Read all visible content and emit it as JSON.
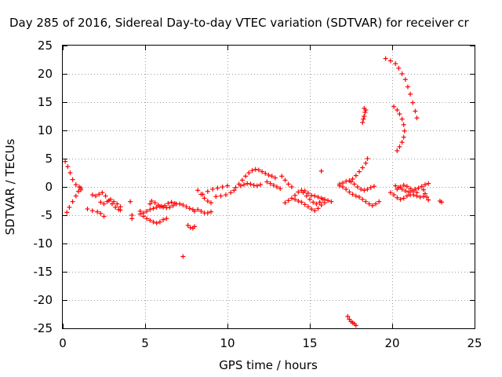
{
  "chart_data": {
    "type": "scatter",
    "title": "Day 285 of 2016, Sidereal Day-to-day VTEC variation (SDTVAR) for receiver cr",
    "xlabel": "GPS time / hours",
    "ylabel": "SDTVAR / TECUs",
    "xlim": [
      0,
      25
    ],
    "ylim": [
      -25,
      25
    ],
    "xticks": [
      0,
      5,
      10,
      15,
      20,
      25
    ],
    "yticks": [
      -25,
      -20,
      -15,
      -10,
      -5,
      0,
      5,
      10,
      15,
      20,
      25
    ],
    "grid": true,
    "marker": "plus",
    "color": "#ff0000",
    "tracks": [
      [
        [
          0.15,
          4.5
        ],
        [
          0.3,
          3.6
        ],
        [
          0.45,
          2.5
        ],
        [
          0.6,
          1.3
        ],
        [
          0.8,
          0.4
        ],
        [
          1.0,
          0.0
        ],
        [
          1.1,
          -0.5
        ]
      ],
      [
        [
          0.25,
          -4.5
        ],
        [
          0.4,
          -3.6
        ],
        [
          0.6,
          -2.6
        ],
        [
          0.8,
          -1.6
        ],
        [
          0.95,
          -0.8
        ],
        [
          1.1,
          -0.2
        ]
      ],
      [
        [
          1.5,
          -3.9
        ],
        [
          1.8,
          -4.2
        ],
        [
          2.1,
          -4.4
        ],
        [
          2.3,
          -4.7
        ],
        [
          2.5,
          -5.2
        ]
      ],
      [
        [
          1.8,
          -1.4
        ],
        [
          2.0,
          -1.6
        ],
        [
          2.2,
          -1.3
        ],
        [
          2.4,
          -1.0
        ],
        [
          2.6,
          -1.6
        ],
        [
          2.8,
          -2.4
        ],
        [
          3.0,
          -3.0
        ],
        [
          3.2,
          -3.6
        ],
        [
          3.4,
          -4.0
        ],
        [
          3.5,
          -4.1
        ]
      ],
      [
        [
          2.3,
          -2.7
        ],
        [
          2.5,
          -3.0
        ],
        [
          2.7,
          -2.6
        ],
        [
          2.9,
          -2.2
        ],
        [
          3.1,
          -2.6
        ],
        [
          3.3,
          -3.0
        ],
        [
          3.5,
          -3.5
        ]
      ],
      [
        [
          4.1,
          -2.6
        ]
      ],
      [
        [
          4.2,
          -5.0
        ],
        [
          4.2,
          -5.6
        ]
      ],
      [
        [
          4.7,
          -4.3
        ],
        [
          4.9,
          -5.2
        ],
        [
          5.1,
          -5.6
        ],
        [
          5.3,
          -5.9
        ],
        [
          5.5,
          -6.2
        ],
        [
          5.7,
          -6.4
        ],
        [
          5.9,
          -6.2
        ],
        [
          6.1,
          -5.8
        ],
        [
          6.3,
          -5.6
        ]
      ],
      [
        [
          4.7,
          -4.8
        ],
        [
          4.9,
          -4.6
        ],
        [
          5.1,
          -4.3
        ],
        [
          5.3,
          -4.0
        ],
        [
          5.5,
          -3.8
        ],
        [
          5.7,
          -3.6
        ],
        [
          5.9,
          -3.5
        ],
        [
          6.1,
          -3.6
        ],
        [
          6.3,
          -3.7
        ],
        [
          6.5,
          -3.6
        ],
        [
          6.7,
          -3.3
        ],
        [
          6.9,
          -3.0
        ],
        [
          7.1,
          -3.0
        ],
        [
          7.3,
          -3.2
        ],
        [
          7.5,
          -3.5
        ],
        [
          7.7,
          -3.8
        ],
        [
          7.9,
          -4.0
        ],
        [
          8.0,
          -4.3
        ]
      ],
      [
        [
          5.3,
          -3.0
        ],
        [
          5.4,
          -2.5
        ],
        [
          5.6,
          -2.8
        ],
        [
          5.8,
          -3.2
        ],
        [
          6.0,
          -3.4
        ],
        [
          6.2,
          -3.3
        ],
        [
          6.4,
          -2.9
        ],
        [
          6.6,
          -2.7
        ],
        [
          6.8,
          -2.9
        ]
      ],
      [
        [
          7.3,
          -12.3
        ]
      ],
      [
        [
          7.6,
          -6.8
        ],
        [
          7.75,
          -7.2
        ],
        [
          7.9,
          -7.3
        ],
        [
          8.0,
          -7.0
        ]
      ],
      [
        [
          8.2,
          -4.0
        ],
        [
          8.4,
          -4.3
        ],
        [
          8.6,
          -4.6
        ],
        [
          8.8,
          -4.6
        ],
        [
          9.0,
          -4.4
        ]
      ],
      [
        [
          8.2,
          -0.6
        ],
        [
          8.4,
          -1.3
        ],
        [
          8.6,
          -2.0
        ],
        [
          8.8,
          -2.5
        ],
        [
          9.0,
          -2.8
        ]
      ],
      [
        [
          8.5,
          -1.3
        ],
        [
          8.8,
          -0.8
        ],
        [
          9.1,
          -0.4
        ],
        [
          9.4,
          -0.2
        ],
        [
          9.7,
          0.0
        ],
        [
          10.0,
          0.2
        ]
      ],
      [
        [
          9.3,
          -1.7
        ],
        [
          9.6,
          -1.6
        ],
        [
          9.9,
          -1.4
        ],
        [
          10.2,
          -1.0
        ],
        [
          10.4,
          -0.6
        ]
      ],
      [
        [
          10.5,
          -0.1
        ],
        [
          10.7,
          0.5
        ],
        [
          10.9,
          1.2
        ],
        [
          11.1,
          1.9
        ],
        [
          11.3,
          2.5
        ],
        [
          11.5,
          2.9
        ],
        [
          11.7,
          3.1
        ],
        [
          11.9,
          3.0
        ],
        [
          12.1,
          2.7
        ],
        [
          12.3,
          2.4
        ],
        [
          12.5,
          2.1
        ],
        [
          12.7,
          1.9
        ],
        [
          12.9,
          1.6
        ]
      ],
      [
        [
          10.8,
          0.2
        ],
        [
          11.0,
          0.4
        ],
        [
          11.2,
          0.6
        ],
        [
          11.4,
          0.5
        ],
        [
          11.6,
          0.3
        ],
        [
          11.8,
          0.2
        ],
        [
          12.0,
          0.4
        ]
      ],
      [
        [
          12.4,
          0.9
        ],
        [
          12.6,
          0.6
        ],
        [
          12.8,
          0.3
        ],
        [
          13.0,
          0.0
        ],
        [
          13.2,
          -0.3
        ]
      ],
      [
        [
          13.3,
          1.9
        ],
        [
          13.5,
          1.2
        ],
        [
          13.7,
          0.5
        ],
        [
          13.9,
          0.0
        ]
      ],
      [
        [
          13.5,
          -2.8
        ],
        [
          13.7,
          -2.4
        ],
        [
          13.9,
          -2.0
        ],
        [
          14.1,
          -1.5
        ],
        [
          14.3,
          -0.9
        ],
        [
          14.5,
          -0.6
        ],
        [
          14.7,
          -0.7
        ],
        [
          14.9,
          -1.1
        ],
        [
          15.1,
          -1.5
        ],
        [
          15.3,
          -1.6
        ],
        [
          15.5,
          -1.8
        ],
        [
          15.7,
          -2.0
        ],
        [
          15.9,
          -2.2
        ],
        [
          16.1,
          -2.4
        ],
        [
          16.3,
          -2.6
        ]
      ],
      [
        [
          14.1,
          -2.2
        ],
        [
          14.3,
          -2.5
        ],
        [
          14.5,
          -2.7
        ],
        [
          14.7,
          -3.1
        ],
        [
          14.9,
          -3.5
        ],
        [
          15.1,
          -3.9
        ],
        [
          15.3,
          -4.2
        ],
        [
          15.5,
          -3.8
        ],
        [
          15.7,
          -3.2
        ],
        [
          15.9,
          -2.8
        ]
      ],
      [
        [
          14.6,
          -1.0
        ],
        [
          14.8,
          -1.6
        ],
        [
          15.0,
          -2.2
        ],
        [
          15.2,
          -2.7
        ],
        [
          15.4,
          -3.0
        ],
        [
          15.6,
          -2.7
        ],
        [
          15.8,
          -2.2
        ]
      ],
      [
        [
          15.7,
          2.8
        ]
      ],
      [
        [
          16.8,
          0.2
        ],
        [
          17.0,
          0.7
        ],
        [
          17.2,
          1.0
        ],
        [
          17.4,
          1.1
        ],
        [
          17.6,
          1.4
        ],
        [
          17.8,
          2.0
        ],
        [
          18.0,
          2.7
        ],
        [
          18.2,
          3.4
        ],
        [
          18.4,
          4.2
        ],
        [
          18.5,
          5.0
        ]
      ],
      [
        [
          16.8,
          0.5
        ],
        [
          17.0,
          0.0
        ],
        [
          17.2,
          -0.4
        ],
        [
          17.4,
          -0.9
        ],
        [
          17.6,
          -1.3
        ],
        [
          17.8,
          -1.6
        ],
        [
          18.0,
          -1.8
        ],
        [
          18.2,
          -2.2
        ],
        [
          18.4,
          -2.6
        ],
        [
          18.6,
          -3.0
        ],
        [
          18.8,
          -3.3
        ],
        [
          19.0,
          -3.0
        ],
        [
          19.2,
          -2.6
        ]
      ],
      [
        [
          17.5,
          0.9
        ],
        [
          17.7,
          0.5
        ],
        [
          17.9,
          0.0
        ],
        [
          18.1,
          -0.4
        ],
        [
          18.3,
          -0.6
        ],
        [
          18.5,
          -0.4
        ],
        [
          18.7,
          -0.1
        ],
        [
          18.9,
          0.1
        ]
      ],
      [
        [
          17.3,
          -22.9
        ],
        [
          17.4,
          -23.4
        ],
        [
          17.5,
          -23.8
        ],
        [
          17.6,
          -24.0
        ],
        [
          17.7,
          -24.2
        ],
        [
          17.8,
          -24.5
        ]
      ],
      [
        [
          18.2,
          11.4
        ],
        [
          18.25,
          12.0
        ],
        [
          18.3,
          12.5
        ],
        [
          18.35,
          13.2
        ],
        [
          18.3,
          13.9
        ],
        [
          18.4,
          13.6
        ]
      ],
      [
        [
          19.6,
          22.7
        ],
        [
          19.9,
          22.3
        ],
        [
          20.2,
          21.8
        ],
        [
          20.4,
          21.0
        ],
        [
          20.6,
          20.0
        ],
        [
          20.8,
          19.0
        ],
        [
          20.95,
          17.7
        ],
        [
          21.1,
          16.4
        ],
        [
          21.25,
          14.9
        ],
        [
          21.4,
          13.4
        ],
        [
          21.5,
          12.2
        ]
      ],
      [
        [
          20.1,
          14.2
        ],
        [
          20.3,
          13.6
        ],
        [
          20.45,
          12.9
        ],
        [
          20.6,
          12.0
        ],
        [
          20.7,
          11.0
        ],
        [
          20.75,
          9.9
        ],
        [
          20.7,
          8.8
        ],
        [
          20.6,
          7.9
        ],
        [
          20.45,
          7.1
        ],
        [
          20.3,
          6.4
        ]
      ],
      [
        [
          19.9,
          -1.0
        ],
        [
          20.1,
          -1.4
        ],
        [
          20.3,
          -1.9
        ],
        [
          20.5,
          -2.2
        ],
        [
          20.7,
          -2.0
        ],
        [
          20.9,
          -1.6
        ],
        [
          21.1,
          -1.4
        ],
        [
          21.3,
          -1.4
        ],
        [
          21.5,
          -1.6
        ],
        [
          21.7,
          -1.8
        ],
        [
          21.9,
          -1.7
        ]
      ],
      [
        [
          20.2,
          0.2
        ],
        [
          20.4,
          -0.1
        ],
        [
          20.6,
          -0.4
        ],
        [
          20.8,
          -0.7
        ],
        [
          21.0,
          -0.9
        ],
        [
          21.2,
          -0.7
        ],
        [
          21.4,
          -0.4
        ],
        [
          21.6,
          -0.2
        ],
        [
          21.8,
          0.1
        ],
        [
          22.0,
          0.4
        ],
        [
          22.2,
          0.6
        ]
      ],
      [
        [
          20.3,
          -0.4
        ],
        [
          20.5,
          0.0
        ],
        [
          20.7,
          0.3
        ],
        [
          20.9,
          0.1
        ],
        [
          21.1,
          -0.3
        ],
        [
          21.3,
          -0.7
        ],
        [
          21.5,
          -1.0
        ]
      ],
      [
        [
          21.9,
          -0.5
        ],
        [
          22.0,
          -1.2
        ],
        [
          22.1,
          -1.8
        ],
        [
          22.2,
          -2.3
        ]
      ],
      [
        [
          22.9,
          -2.5
        ],
        [
          23.0,
          -2.7
        ]
      ]
    ]
  }
}
